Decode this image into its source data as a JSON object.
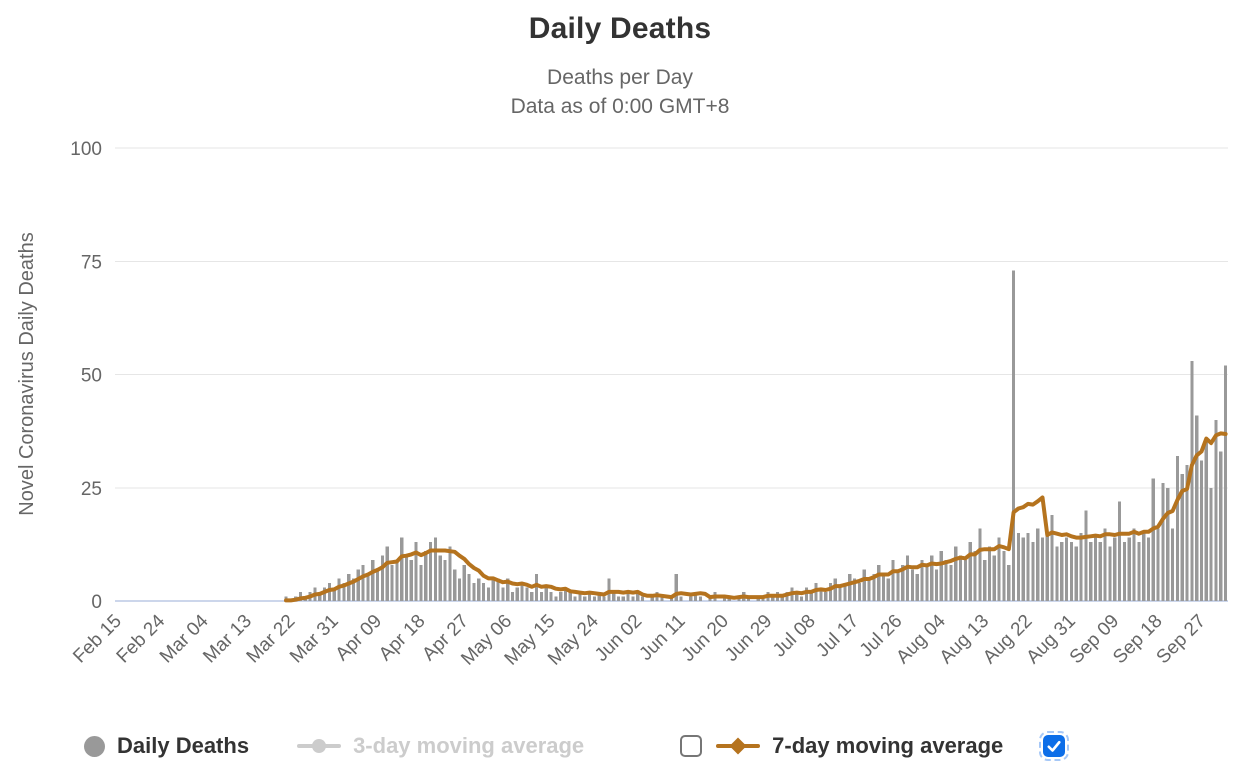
{
  "chart_data": {
    "type": "bar",
    "title": "Daily Deaths",
    "subtitle": [
      "Deaths per Day",
      "Data as of 0:00 GMT+8"
    ],
    "xlabel": "",
    "ylabel": "Novel Coronavirus Daily Deaths",
    "ylim": [
      0,
      100
    ],
    "yticks": [
      0,
      25,
      50,
      75,
      100
    ],
    "grid": true,
    "legend_position": "bottom",
    "x_start_date": "Feb 15",
    "x_end_date": "Oct 02",
    "xtick_interval_days": 9,
    "xtick_labels": [
      "Feb 15",
      "Feb 24",
      "Mar 04",
      "Mar 13",
      "Mar 22",
      "Mar 31",
      "Apr 09",
      "Apr 18",
      "Apr 27",
      "May 06",
      "May 15",
      "May 24",
      "Jun 02",
      "Jun 11",
      "Jun 20",
      "Jun 29",
      "Jul 08",
      "Jul 17",
      "Jul 26",
      "Aug 04",
      "Aug 13",
      "Aug 22",
      "Aug 31",
      "Sep 09",
      "Sep 18",
      "Sep 27"
    ],
    "series": [
      {
        "name": "Daily Deaths",
        "type": "column",
        "color": "#999999",
        "visible": true,
        "values": [
          0,
          0,
          0,
          0,
          0,
          0,
          0,
          0,
          0,
          0,
          0,
          0,
          0,
          0,
          0,
          0,
          0,
          0,
          0,
          0,
          0,
          0,
          0,
          0,
          0,
          0,
          0,
          0,
          0,
          0,
          0,
          0,
          0,
          0,
          0,
          1,
          0,
          1,
          2,
          1,
          2,
          3,
          2,
          3,
          4,
          3,
          5,
          4,
          6,
          5,
          7,
          8,
          6,
          9,
          7,
          10,
          12,
          8,
          9,
          14,
          10,
          9,
          13,
          8,
          11,
          13,
          14,
          10,
          9,
          12,
          7,
          5,
          8,
          6,
          4,
          5,
          4,
          3,
          5,
          5,
          3,
          5,
          2,
          3,
          4,
          3,
          2,
          6,
          2,
          3,
          2,
          1,
          2,
          3,
          2,
          1,
          2,
          1,
          2,
          1,
          2,
          1,
          5,
          2,
          1,
          1,
          2,
          1,
          2,
          1,
          0,
          1,
          2,
          1,
          0,
          1,
          6,
          1,
          0,
          1,
          2,
          1,
          0,
          1,
          2,
          0,
          1,
          1,
          0,
          1,
          2,
          1,
          0,
          1,
          1,
          2,
          1,
          2,
          1,
          2,
          3,
          2,
          1,
          3,
          2,
          4,
          3,
          2,
          4,
          5,
          3,
          4,
          6,
          5,
          4,
          7,
          5,
          6,
          8,
          6,
          5,
          9,
          7,
          8,
          10,
          7,
          6,
          9,
          8,
          10,
          7,
          11,
          9,
          8,
          12,
          10,
          9,
          13,
          11,
          16,
          9,
          12,
          10,
          14,
          11,
          8,
          73,
          15,
          14,
          15,
          13,
          16,
          14,
          15,
          19,
          12,
          13,
          14,
          13,
          12,
          15,
          20,
          13,
          14,
          13,
          16,
          12,
          14,
          22,
          13,
          14,
          16,
          13,
          15,
          14,
          27,
          16,
          26,
          25,
          16,
          32,
          28,
          30,
          53,
          41,
          31,
          36,
          25,
          40,
          33,
          52
        ]
      },
      {
        "name": "3-day moving average",
        "type": "line",
        "color": "#cccccc",
        "visible": false,
        "window": 3,
        "derived_from": "Daily Deaths"
      },
      {
        "name": "7-day moving average",
        "type": "line",
        "color": "#b5731e",
        "visible": true,
        "window": 7,
        "derived_from": "Daily Deaths"
      }
    ]
  },
  "axis_style": {
    "axis_line_color": "#ccd6eb",
    "grid_color": "#e6e6e6",
    "label_color": "#666666"
  },
  "legend": {
    "items": [
      {
        "label": "Daily Deaths",
        "marker": "circle",
        "color": "#999999",
        "text_color": "#333333",
        "checkbox": null
      },
      {
        "label": "3-day moving average",
        "marker": "line-circle",
        "color": "#cccccc",
        "text_color": "#cccccc",
        "checkbox": "unchecked"
      },
      {
        "label": "7-day moving average",
        "marker": "line-diamond",
        "color": "#b5731e",
        "text_color": "#333333",
        "checkbox": "checked"
      }
    ],
    "checkbox_checked_color": "#0d6ee8"
  }
}
